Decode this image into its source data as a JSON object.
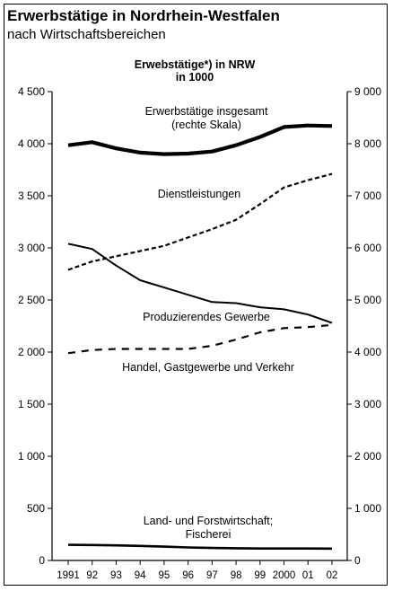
{
  "header": {
    "title": "Erwerbstätige in Nordrhein-Westfalen",
    "subtitle": "nach Wirtschaftsbereichen"
  },
  "chart_data": {
    "type": "line",
    "title": "Erwebstätige*) in NRW",
    "subtitle": "in 1000",
    "x": [
      "1991",
      "92",
      "93",
      "94",
      "95",
      "96",
      "97",
      "98",
      "99",
      "2000",
      "01",
      "02"
    ],
    "y_left": {
      "ylim": [
        0,
        4500
      ],
      "ticks": [
        0,
        500,
        1000,
        1500,
        2000,
        2500,
        3000,
        3500,
        4000,
        4500
      ],
      "tick_labels": [
        "0",
        "500",
        "1 000",
        "1 500",
        "2 000",
        "2 500",
        "3 000",
        "3 500",
        "4 000",
        "4 500"
      ]
    },
    "y_right": {
      "ylim": [
        0,
        9000
      ],
      "ticks": [
        0,
        1000,
        2000,
        3000,
        4000,
        5000,
        6000,
        7000,
        8000,
        9000
      ],
      "tick_labels": [
        "0",
        "1 000",
        "2 000",
        "3 000",
        "4 000",
        "5 000",
        "6 000",
        "7 000",
        "8 000",
        "9 000"
      ]
    },
    "grid": false,
    "series": [
      {
        "name": "Erwerbstätige insgesamt (rechte Skala)",
        "label_lines": [
          "Erwerbstätige insgesamt",
          "(rechte Skala)"
        ],
        "axis": "right",
        "style": "thick",
        "values": [
          7970,
          8030,
          7910,
          7830,
          7800,
          7810,
          7850,
          7970,
          8130,
          8320,
          8350,
          8340
        ]
      },
      {
        "name": "Dienstleistungen",
        "label_lines": [
          "Dienstleistungen"
        ],
        "axis": "left",
        "style": "dashed",
        "values": [
          2790,
          2870,
          2920,
          2970,
          3020,
          3100,
          3180,
          3270,
          3420,
          3580,
          3650,
          3710
        ]
      },
      {
        "name": "Produzierendes Gewerbe",
        "label_lines": [
          "Produzierendes Gewerbe"
        ],
        "axis": "left",
        "style": "solid",
        "values": [
          3040,
          2990,
          2830,
          2690,
          2620,
          2550,
          2480,
          2470,
          2430,
          2410,
          2360,
          2280
        ]
      },
      {
        "name": "Handel, Gastgewerbe und Verkehr",
        "label_lines": [
          "Handel, Gastgewerbe und Verkehr"
        ],
        "axis": "left",
        "style": "dashed-wide",
        "values": [
          1990,
          2020,
          2030,
          2030,
          2030,
          2030,
          2060,
          2120,
          2190,
          2230,
          2240,
          2260
        ]
      },
      {
        "name": "Land- und Forstwirtschaft; Fischerei",
        "label_lines": [
          "Land- und Forstwirtschaft;",
          "Fischerei"
        ],
        "axis": "left",
        "style": "solid-medium",
        "values": [
          150,
          148,
          145,
          140,
          133,
          125,
          120,
          117,
          115,
          115,
          115,
          114
        ]
      }
    ]
  }
}
